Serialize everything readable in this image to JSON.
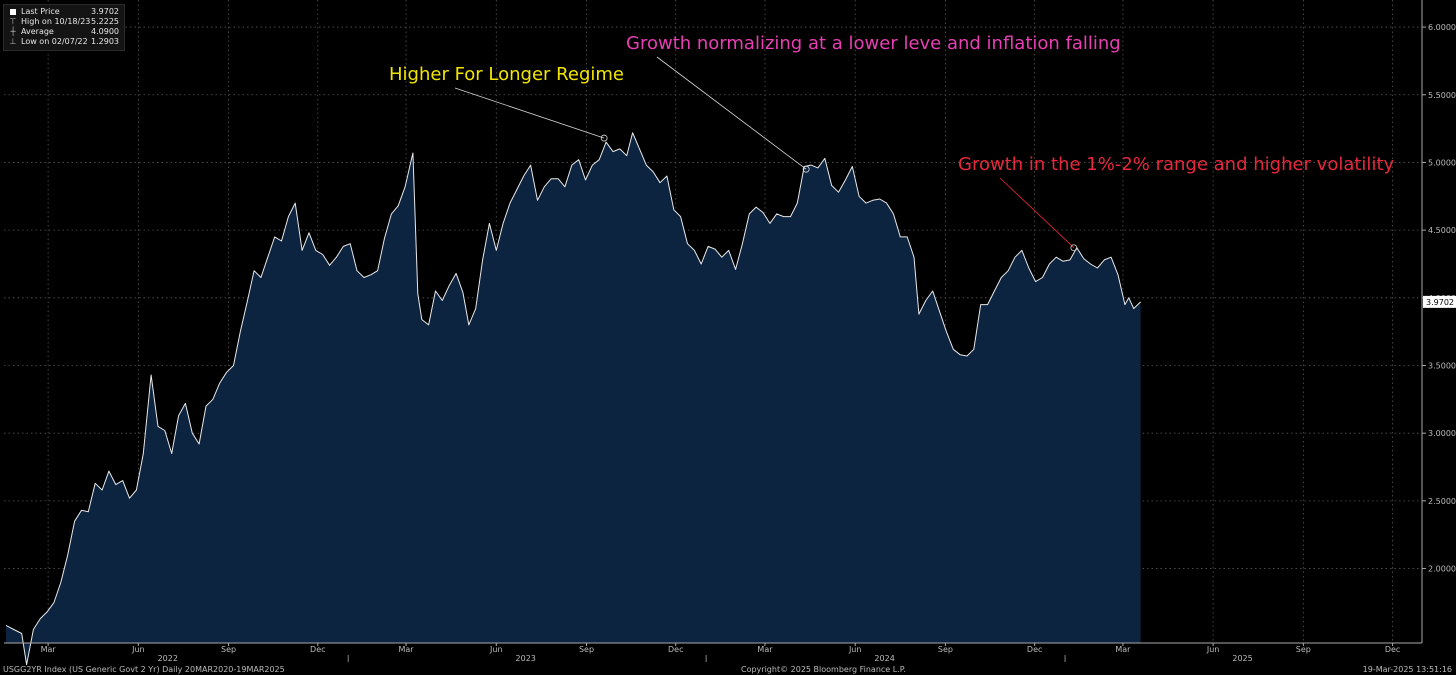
{
  "legend": {
    "items": [
      {
        "label": "Last Price",
        "value": "3.9702",
        "icon": "filled-square-icon"
      },
      {
        "label": "High on 10/18/23",
        "value": "5.2225",
        "icon": "high-marker-icon"
      },
      {
        "label": "Average",
        "value": "4.0900",
        "icon": "average-marker-icon"
      },
      {
        "label": "Low on 02/07/22",
        "value": "1.2903",
        "icon": "low-marker-icon"
      }
    ]
  },
  "annotations": [
    {
      "text": "Higher For Longer Regime",
      "color": "#f2e600"
    },
    {
      "text": "Growth normalizing at a lower leve and inflation falling",
      "color": "#e83fb4"
    },
    {
      "text": "Growth in the 1%-2% range and higher volatility",
      "color": "#e8283c"
    }
  ],
  "footer": {
    "left": "USGG2YR Index (US Generic Govt 2 Yr)  Daily 20MAR2020-19MAR2025",
    "center": "Copyright© 2025 Bloomberg Finance L.P.",
    "right": "19-Mar-2025 13:51:16"
  },
  "colors": {
    "line": "#e8e8e8",
    "area": "#0d2440",
    "grid": "#555555",
    "background": "#000000"
  },
  "chart_data": {
    "type": "area",
    "series_name": "USGG2YR Index",
    "last_price_label": "3.9702",
    "ylim": [
      1.45,
      6.2
    ],
    "y_ticks": [
      2.0,
      2.5,
      3.0,
      3.5,
      4.0,
      4.5,
      5.0,
      5.5,
      6.0
    ],
    "y_tick_labels": [
      "2.0000",
      "2.5000",
      "3.0000",
      "3.5000",
      "4.0000",
      "4.5000",
      "5.0000",
      "5.5000",
      "6.0000"
    ],
    "x_range": [
      "2022-01-15",
      "2025-12-31"
    ],
    "month_ticks": [
      {
        "date": "2022-03-01",
        "label": "Mar"
      },
      {
        "date": "2022-06-01",
        "label": "Jun"
      },
      {
        "date": "2022-09-01",
        "label": "Sep"
      },
      {
        "date": "2022-12-01",
        "label": "Dec"
      },
      {
        "date": "2023-03-01",
        "label": "Mar"
      },
      {
        "date": "2023-06-01",
        "label": "Jun"
      },
      {
        "date": "2023-09-01",
        "label": "Sep"
      },
      {
        "date": "2023-12-01",
        "label": "Dec"
      },
      {
        "date": "2024-03-01",
        "label": "Mar"
      },
      {
        "date": "2024-06-01",
        "label": "Jun"
      },
      {
        "date": "2024-09-01",
        "label": "Sep"
      },
      {
        "date": "2024-12-01",
        "label": "Dec"
      },
      {
        "date": "2025-03-01",
        "label": "Mar"
      },
      {
        "date": "2025-06-01",
        "label": "Jun"
      },
      {
        "date": "2025-09-01",
        "label": "Sep"
      },
      {
        "date": "2025-12-01",
        "label": "Dec"
      }
    ],
    "year_labels": [
      {
        "date": "2022-07-01",
        "label": "2022"
      },
      {
        "date": "2023-07-01",
        "label": "2023"
      },
      {
        "date": "2024-07-01",
        "label": "2024"
      },
      {
        "date": "2025-07-01",
        "label": "2025"
      }
    ],
    "year_dividers": [
      "2023-01-01",
      "2024-01-01",
      "2025-01-01"
    ],
    "points": [
      [
        "2022-01-17",
        1.58
      ],
      [
        "2022-01-25",
        1.55
      ],
      [
        "2022-02-02",
        1.52
      ],
      [
        "2022-02-07",
        1.29
      ],
      [
        "2022-02-14",
        1.55
      ],
      [
        "2022-02-21",
        1.63
      ],
      [
        "2022-02-28",
        1.68
      ],
      [
        "2022-03-07",
        1.75
      ],
      [
        "2022-03-14",
        1.9
      ],
      [
        "2022-03-21",
        2.1
      ],
      [
        "2022-03-28",
        2.35
      ],
      [
        "2022-04-04",
        2.43
      ],
      [
        "2022-04-11",
        2.42
      ],
      [
        "2022-04-18",
        2.63
      ],
      [
        "2022-04-25",
        2.58
      ],
      [
        "2022-05-02",
        2.72
      ],
      [
        "2022-05-09",
        2.62
      ],
      [
        "2022-05-16",
        2.65
      ],
      [
        "2022-05-23",
        2.52
      ],
      [
        "2022-05-30",
        2.58
      ],
      [
        "2022-06-06",
        2.85
      ],
      [
        "2022-06-14",
        3.43
      ],
      [
        "2022-06-21",
        3.05
      ],
      [
        "2022-06-28",
        3.02
      ],
      [
        "2022-07-05",
        2.85
      ],
      [
        "2022-07-12",
        3.13
      ],
      [
        "2022-07-19",
        3.22
      ],
      [
        "2022-07-26",
        3.0
      ],
      [
        "2022-08-02",
        2.92
      ],
      [
        "2022-08-09",
        3.2
      ],
      [
        "2022-08-16",
        3.25
      ],
      [
        "2022-08-23",
        3.37
      ],
      [
        "2022-08-30",
        3.45
      ],
      [
        "2022-09-06",
        3.5
      ],
      [
        "2022-09-13",
        3.75
      ],
      [
        "2022-09-20",
        3.97
      ],
      [
        "2022-09-27",
        4.2
      ],
      [
        "2022-10-04",
        4.15
      ],
      [
        "2022-10-11",
        4.3
      ],
      [
        "2022-10-18",
        4.45
      ],
      [
        "2022-10-25",
        4.42
      ],
      [
        "2022-11-01",
        4.6
      ],
      [
        "2022-11-08",
        4.7
      ],
      [
        "2022-11-15",
        4.35
      ],
      [
        "2022-11-22",
        4.48
      ],
      [
        "2022-11-29",
        4.35
      ],
      [
        "2022-12-06",
        4.32
      ],
      [
        "2022-12-13",
        4.24
      ],
      [
        "2022-12-20",
        4.3
      ],
      [
        "2022-12-27",
        4.38
      ],
      [
        "2023-01-03",
        4.4
      ],
      [
        "2023-01-10",
        4.2
      ],
      [
        "2023-01-17",
        4.15
      ],
      [
        "2023-01-24",
        4.17
      ],
      [
        "2023-01-31",
        4.2
      ],
      [
        "2023-02-07",
        4.44
      ],
      [
        "2023-02-14",
        4.62
      ],
      [
        "2023-02-21",
        4.68
      ],
      [
        "2023-02-28",
        4.82
      ],
      [
        "2023-03-08",
        5.07
      ],
      [
        "2023-03-13",
        4.03
      ],
      [
        "2023-03-17",
        3.84
      ],
      [
        "2023-03-24",
        3.8
      ],
      [
        "2023-03-31",
        4.05
      ],
      [
        "2023-04-07",
        3.98
      ],
      [
        "2023-04-14",
        4.09
      ],
      [
        "2023-04-21",
        4.18
      ],
      [
        "2023-04-28",
        4.04
      ],
      [
        "2023-05-04",
        3.8
      ],
      [
        "2023-05-11",
        3.92
      ],
      [
        "2023-05-18",
        4.28
      ],
      [
        "2023-05-25",
        4.55
      ],
      [
        "2023-06-01",
        4.35
      ],
      [
        "2023-06-08",
        4.55
      ],
      [
        "2023-06-15",
        4.7
      ],
      [
        "2023-06-22",
        4.8
      ],
      [
        "2023-06-29",
        4.9
      ],
      [
        "2023-07-06",
        4.98
      ],
      [
        "2023-07-13",
        4.72
      ],
      [
        "2023-07-20",
        4.82
      ],
      [
        "2023-07-27",
        4.88
      ],
      [
        "2023-08-03",
        4.88
      ],
      [
        "2023-08-10",
        4.82
      ],
      [
        "2023-08-17",
        4.98
      ],
      [
        "2023-08-24",
        5.02
      ],
      [
        "2023-08-31",
        4.87
      ],
      [
        "2023-09-07",
        4.98
      ],
      [
        "2023-09-14",
        5.02
      ],
      [
        "2023-09-21",
        5.15
      ],
      [
        "2023-09-28",
        5.08
      ],
      [
        "2023-10-05",
        5.1
      ],
      [
        "2023-10-12",
        5.05
      ],
      [
        "2023-10-18",
        5.22
      ],
      [
        "2023-10-25",
        5.1
      ],
      [
        "2023-11-01",
        4.98
      ],
      [
        "2023-11-08",
        4.93
      ],
      [
        "2023-11-15",
        4.85
      ],
      [
        "2023-11-22",
        4.9
      ],
      [
        "2023-11-29",
        4.65
      ],
      [
        "2023-12-06",
        4.6
      ],
      [
        "2023-12-13",
        4.4
      ],
      [
        "2023-12-20",
        4.35
      ],
      [
        "2023-12-27",
        4.25
      ],
      [
        "2024-01-03",
        4.38
      ],
      [
        "2024-01-10",
        4.36
      ],
      [
        "2024-01-17",
        4.3
      ],
      [
        "2024-01-24",
        4.35
      ],
      [
        "2024-01-31",
        4.21
      ],
      [
        "2024-02-07",
        4.4
      ],
      [
        "2024-02-14",
        4.62
      ],
      [
        "2024-02-21",
        4.67
      ],
      [
        "2024-02-28",
        4.63
      ],
      [
        "2024-03-06",
        4.55
      ],
      [
        "2024-03-13",
        4.62
      ],
      [
        "2024-03-20",
        4.6
      ],
      [
        "2024-03-27",
        4.6
      ],
      [
        "2024-04-03",
        4.7
      ],
      [
        "2024-04-10",
        4.97
      ],
      [
        "2024-04-17",
        4.98
      ],
      [
        "2024-04-24",
        4.96
      ],
      [
        "2024-05-01",
        5.03
      ],
      [
        "2024-05-08",
        4.83
      ],
      [
        "2024-05-15",
        4.78
      ],
      [
        "2024-05-22",
        4.87
      ],
      [
        "2024-05-29",
        4.97
      ],
      [
        "2024-06-05",
        4.75
      ],
      [
        "2024-06-12",
        4.7
      ],
      [
        "2024-06-19",
        4.72
      ],
      [
        "2024-06-26",
        4.73
      ],
      [
        "2024-07-03",
        4.7
      ],
      [
        "2024-07-10",
        4.62
      ],
      [
        "2024-07-17",
        4.45
      ],
      [
        "2024-07-24",
        4.45
      ],
      [
        "2024-07-31",
        4.3
      ],
      [
        "2024-08-05",
        3.88
      ],
      [
        "2024-08-12",
        3.98
      ],
      [
        "2024-08-19",
        4.05
      ],
      [
        "2024-08-26",
        3.9
      ],
      [
        "2024-09-02",
        3.75
      ],
      [
        "2024-09-09",
        3.62
      ],
      [
        "2024-09-16",
        3.58
      ],
      [
        "2024-09-23",
        3.57
      ],
      [
        "2024-09-30",
        3.62
      ],
      [
        "2024-10-07",
        3.95
      ],
      [
        "2024-10-14",
        3.95
      ],
      [
        "2024-10-21",
        4.05
      ],
      [
        "2024-10-28",
        4.15
      ],
      [
        "2024-11-04",
        4.2
      ],
      [
        "2024-11-11",
        4.3
      ],
      [
        "2024-11-18",
        4.35
      ],
      [
        "2024-11-25",
        4.22
      ],
      [
        "2024-12-02",
        4.12
      ],
      [
        "2024-12-09",
        4.15
      ],
      [
        "2024-12-16",
        4.25
      ],
      [
        "2024-12-23",
        4.3
      ],
      [
        "2024-12-30",
        4.27
      ],
      [
        "2025-01-06",
        4.28
      ],
      [
        "2025-01-13",
        4.37
      ],
      [
        "2025-01-20",
        4.29
      ],
      [
        "2025-01-27",
        4.25
      ],
      [
        "2025-02-03",
        4.22
      ],
      [
        "2025-02-10",
        4.28
      ],
      [
        "2025-02-17",
        4.3
      ],
      [
        "2025-02-24",
        4.17
      ],
      [
        "2025-03-03",
        3.95
      ],
      [
        "2025-03-07",
        4.0
      ],
      [
        "2025-03-12",
        3.92
      ],
      [
        "2025-03-19",
        3.97
      ]
    ],
    "annotation_points": [
      {
        "date": "2023-09-19",
        "value": 5.18
      },
      {
        "date": "2024-04-12",
        "value": 4.95
      },
      {
        "date": "2025-01-10",
        "value": 4.37
      }
    ]
  }
}
